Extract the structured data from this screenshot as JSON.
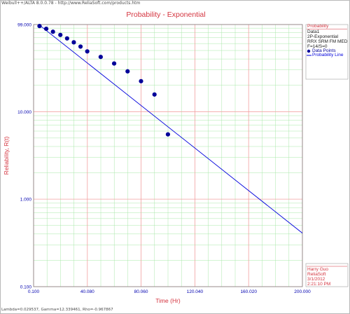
{
  "window": {
    "title": "Weibull++/ALTA 8.0.0.78 - http://www.ReliaSoft.com/products.htm"
  },
  "status_bar": {
    "text": "Lambda=0.029537, Gamma=12.339461, Rho=-0.967867"
  },
  "legend": {
    "title": "Probability",
    "lines": [
      "Data1",
      "2P-Exponential",
      "RRX SRM FM MED",
      "F=14/S=0"
    ],
    "items": [
      "Data Points",
      "Probability Line"
    ]
  },
  "stamp": {
    "lines": [
      "Harry Guo",
      "ReliaSoft",
      "3/1/2012",
      "2:21:10 PM"
    ]
  },
  "colors": {
    "title": "#d4343f",
    "axis_text": "#d4343f",
    "tick_text": "#0000b0",
    "major_grid": "#f2a0a0",
    "minor_grid": "#a8e8a8",
    "points": "#000099",
    "line": "#0000dd"
  },
  "chart_data": {
    "type": "scatter",
    "title": "Probability - Exponential",
    "xlabel": "Time (Hr)",
    "ylabel": "Reliability, R(t)",
    "x_scale": "linear",
    "y_scale": "log",
    "xlim": [
      0.1,
      200
    ],
    "ylim": [
      0.1,
      99
    ],
    "x_ticks": [
      0.1,
      40.08,
      80.06,
      120.04,
      160.02,
      200
    ],
    "x_tick_labels": [
      "0.100",
      "40.080",
      "80.060",
      "120.040",
      "160.020",
      "200.000"
    ],
    "y_ticks": [
      99,
      10,
      1,
      0.1
    ],
    "y_tick_labels": [
      "99.000",
      "10.000",
      "1.000",
      "0.100"
    ],
    "grid": true,
    "legend_position": "right",
    "series": [
      {
        "name": "Data Points",
        "kind": "points",
        "x": [
          4.5,
          9.5,
          14.5,
          20,
          25,
          30,
          35,
          40,
          50,
          60,
          70,
          80,
          90,
          100
        ],
        "y": [
          95.2,
          88.5,
          81.9,
          75.3,
          68.7,
          62.0,
          55.4,
          48.8,
          42.2,
          35.5,
          28.9,
          22.3,
          15.7,
          5.5
        ]
      },
      {
        "name": "Probability Line",
        "kind": "line",
        "x": [
          0.1,
          200
        ],
        "y": [
          110.2,
          0.409
        ]
      }
    ]
  }
}
